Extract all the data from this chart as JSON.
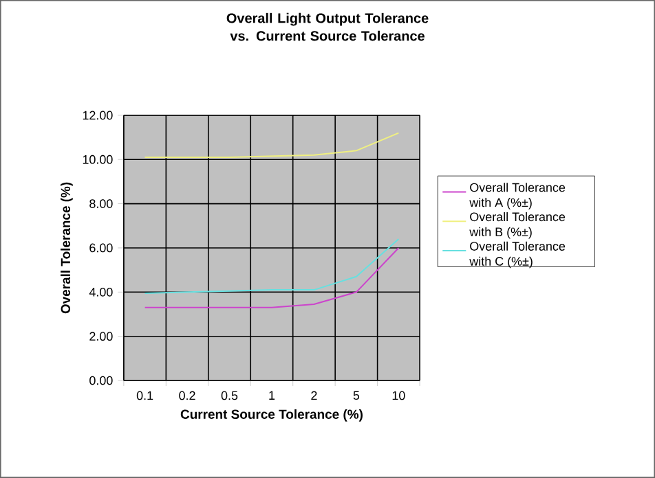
{
  "chart_data": {
    "type": "line",
    "title": "Overall Light Output Tolerance vs. Current Source Tolerance",
    "xlabel": "Current Source Tolerance (%)",
    "ylabel": "Overall Tolerance (%)",
    "categories": [
      "0.1",
      "0.2",
      "0.5",
      "1",
      "2",
      "5",
      "10"
    ],
    "series": [
      {
        "name": "Overall Tolerance with A (%±)",
        "color": "#cc44cc",
        "values": [
          3.3,
          3.3,
          3.3,
          3.3,
          3.45,
          4.0,
          6.0
        ]
      },
      {
        "name": "Overall Tolerance with B (%±)",
        "color": "#f0f080",
        "values": [
          10.1,
          10.1,
          10.1,
          10.15,
          10.2,
          10.4,
          11.2
        ]
      },
      {
        "name": "Overall Tolerance with C (%±)",
        "color": "#66e0e0",
        "values": [
          3.95,
          4.0,
          4.05,
          4.1,
          4.1,
          4.7,
          6.4
        ]
      }
    ],
    "ylim": [
      0,
      12
    ],
    "yticks": [
      {
        "value": 0,
        "label": "0.00"
      },
      {
        "value": 2,
        "label": "2.00"
      },
      {
        "value": 4,
        "label": "4.00"
      },
      {
        "value": 6,
        "label": "6.00"
      },
      {
        "value": 8,
        "label": "8.00"
      },
      {
        "value": 10,
        "label": "10.00"
      },
      {
        "value": 12,
        "label": "12.00"
      }
    ],
    "grid": true,
    "legend": "right",
    "marker": "none",
    "line_style": "solid"
  }
}
